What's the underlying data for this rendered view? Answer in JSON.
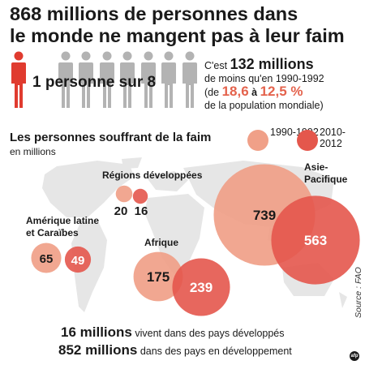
{
  "title": {
    "line1": "868 millions de personnes dans",
    "line2": "le monde ne mangent pas à leur faim"
  },
  "ratio_label": "1 personne sur 8",
  "people": {
    "total": 8,
    "highlighted": 1,
    "highlight_color": "#e03b2f",
    "base_color": "#b3b3b3"
  },
  "note": {
    "prefix": "C'est",
    "amount": "132 millions",
    "line2": "de moins qu'en 1990-1992",
    "open": "(de",
    "from": "18,6",
    "mid": "à",
    "to": "12,5 %",
    "line4": "de la population mondiale)"
  },
  "colors": {
    "period1": "#f0a088",
    "period2": "#e4574c",
    "map": "#e6e6e6",
    "accent": "#e4634d"
  },
  "chart_data": {
    "type": "bubble",
    "title": "Les personnes souffrant de la faim",
    "subtitle": "en millions",
    "legend": [
      "1990-1992",
      "2010-2012"
    ],
    "legend_placement": "top-right",
    "regions": [
      {
        "name": "Régions développées",
        "values": [
          20,
          16
        ]
      },
      {
        "name": "Amérique latine et Caraïbes",
        "values": [
          65,
          49
        ]
      },
      {
        "name": "Afrique",
        "values": [
          175,
          239
        ]
      },
      {
        "name": "Asie-Pacifique",
        "values": [
          739,
          563
        ]
      }
    ]
  },
  "footer": {
    "line1_num": "16 millions",
    "line1_text": "vivent dans des pays développés",
    "line2_num": "852 millions",
    "line2_text": "dans des pays en développement"
  },
  "source": "Source : FAO",
  "logo_text": "afp"
}
